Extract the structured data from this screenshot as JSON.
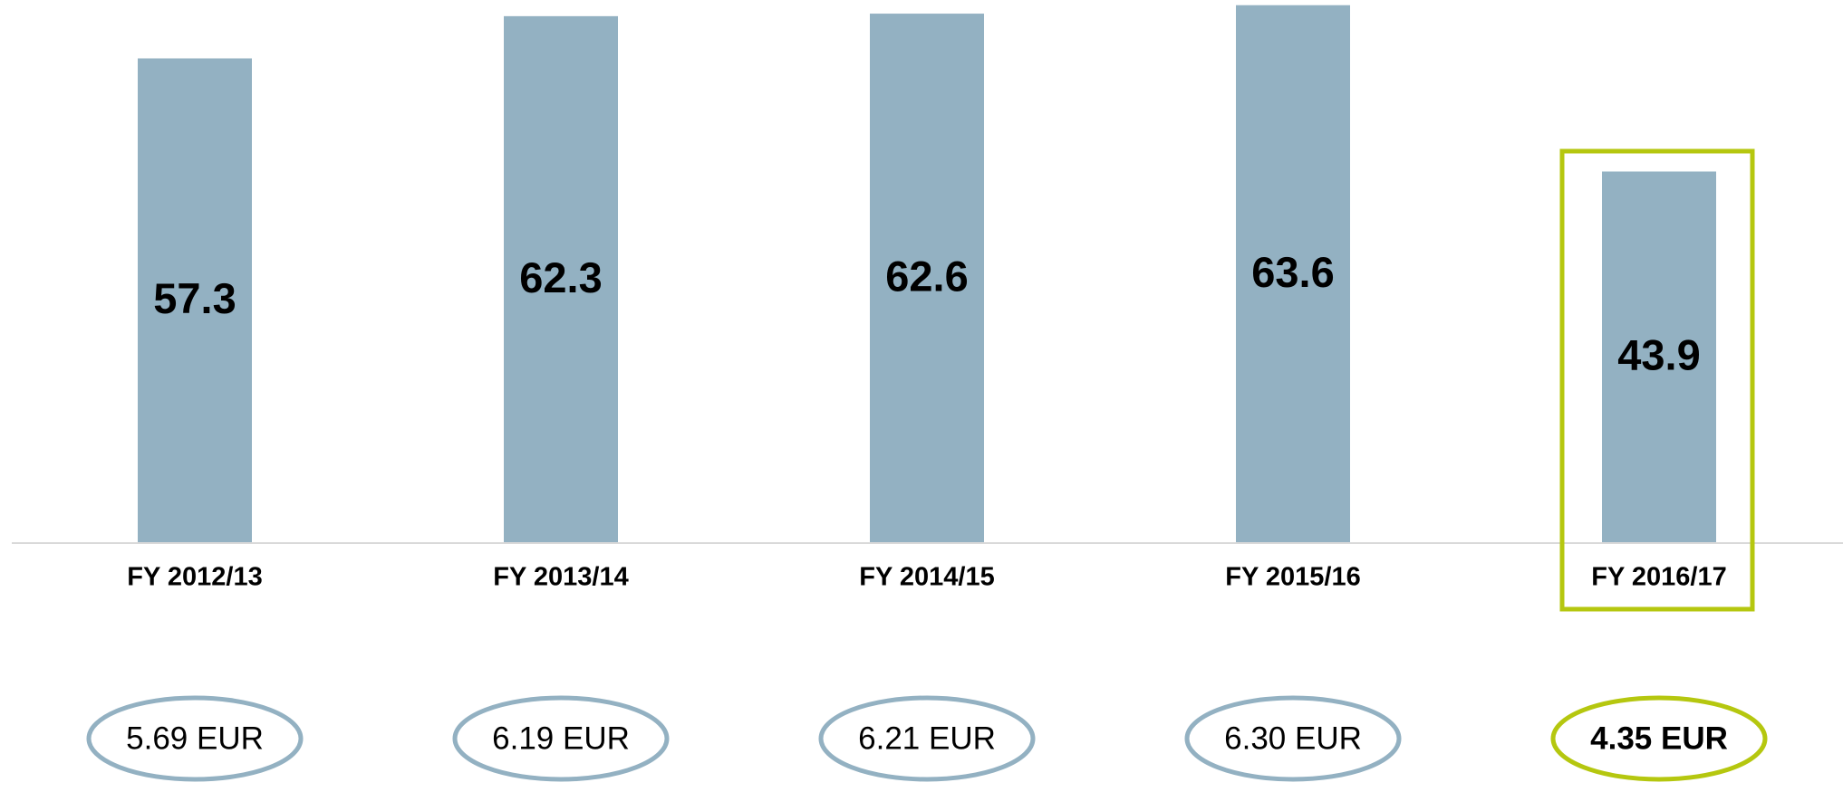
{
  "chart_data": {
    "type": "bar",
    "categories": [
      "FY 2012/13",
      "FY 2013/14",
      "FY 2014/15",
      "FY 2015/16",
      "FY 2016/17"
    ],
    "values": [
      57.3,
      62.3,
      62.6,
      63.6,
      43.9
    ],
    "color": "#93b1c2",
    "ylim": [
      0,
      64
    ],
    "per_share_labels": [
      "5.69 EUR",
      "6.19 EUR",
      "6.21 EUR",
      "6.30 EUR",
      "4.35 EUR"
    ],
    "highlight": 4,
    "highlight_color": "#b5c70f"
  }
}
